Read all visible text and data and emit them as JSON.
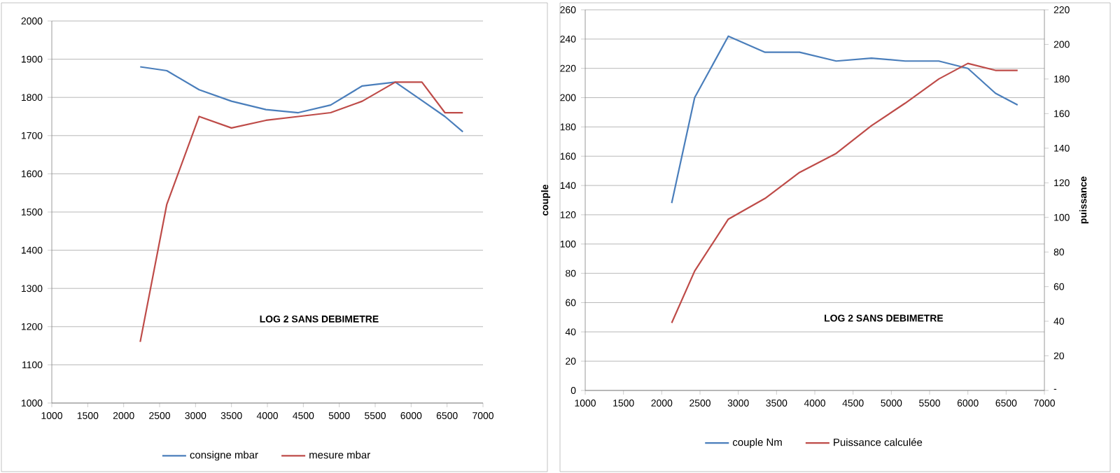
{
  "chart_data": [
    {
      "type": "line",
      "x": [
        2230,
        2600,
        3050,
        3500,
        3980,
        4430,
        4880,
        5320,
        5780,
        6150,
        6470,
        6720
      ],
      "series": [
        {
          "name": "consigne  mbar",
          "color": "#4a7ebb",
          "values": [
            1880,
            1870,
            1820,
            1790,
            1768,
            1760,
            1780,
            1830,
            1840,
            1792,
            1750,
            1710
          ]
        },
        {
          "name": "mesure  mbar",
          "color": "#be4b48",
          "values": [
            1160,
            1520,
            1750,
            1720,
            1740,
            1750,
            1760,
            1790,
            1840,
            1840,
            1760,
            1760
          ]
        }
      ],
      "xlim": [
        1000,
        7000
      ],
      "xticks": [
        1000,
        1500,
        2000,
        2500,
        3000,
        3500,
        4000,
        4500,
        5000,
        5500,
        6000,
        6500,
        7000
      ],
      "ylim": [
        1000,
        2000
      ],
      "yticks": [
        1000,
        1100,
        1200,
        1300,
        1400,
        1500,
        1600,
        1700,
        1800,
        1900,
        2000
      ],
      "grid": "y",
      "legend": "bottom",
      "marker": "none",
      "line_style": "solid",
      "annotations": [
        "LOG 2 SANS DEBIMETRE"
      ]
    },
    {
      "type": "line",
      "x": [
        2130,
        2430,
        2870,
        3350,
        3800,
        4280,
        4740,
        5180,
        5620,
        6000,
        6360,
        6650
      ],
      "series": [
        {
          "name": "couple Nm",
          "color": "#4a7ebb",
          "values": [
            128,
            200,
            242,
            231,
            231,
            225,
            227,
            225,
            225,
            220,
            203,
            195
          ]
        },
        {
          "name": "Puissance calculée",
          "color": "#be4b48",
          "axis": "y2",
          "values": [
            39,
            69,
            99,
            111,
            126,
            137,
            153,
            166,
            180,
            189,
            185,
            185
          ]
        }
      ],
      "xlim": [
        1000,
        7000
      ],
      "xticks": [
        1000,
        1500,
        2000,
        2500,
        3000,
        3500,
        4000,
        4500,
        5000,
        5500,
        6000,
        6500,
        7000
      ],
      "ylim": [
        0,
        260
      ],
      "yticks": [
        0,
        20,
        40,
        60,
        80,
        100,
        120,
        140,
        160,
        180,
        200,
        220,
        240,
        260
      ],
      "y2lim": [
        0,
        220
      ],
      "y2ticks": [
        {
          "value": 0,
          "label": "-"
        },
        20,
        40,
        60,
        80,
        100,
        120,
        140,
        160,
        180,
        200,
        220
      ],
      "ylabel": "couple",
      "y2label": "puissance",
      "grid": "y",
      "legend": "bottom",
      "marker": "none",
      "line_style": "solid",
      "annotations": [
        "LOG 2 SANS  DEBIMETRE"
      ]
    }
  ]
}
